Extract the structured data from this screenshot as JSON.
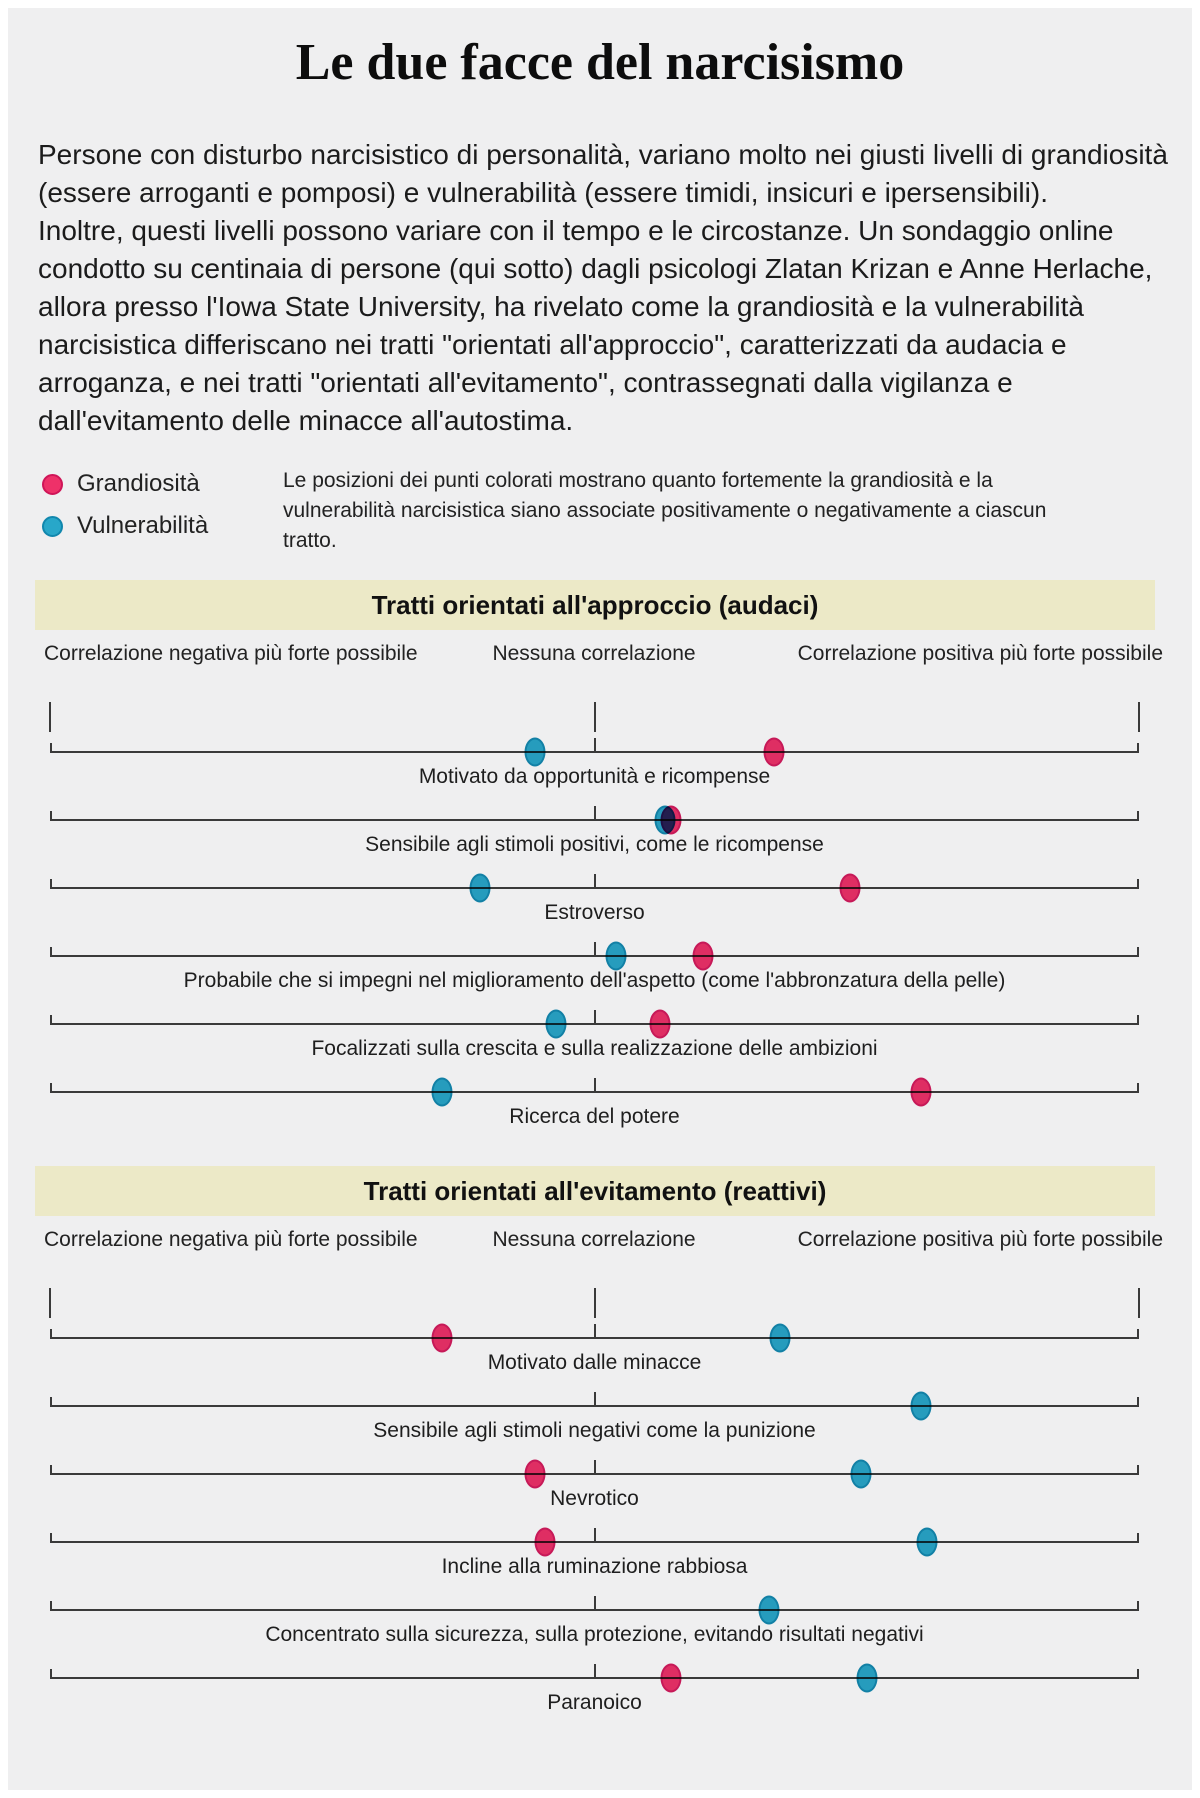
{
  "page": {
    "title": "Le due facce del narcisismo",
    "background": "#efeff0",
    "band_color": "#ece9c7"
  },
  "intro": {
    "p1": "Persone con disturbo narcisistico di personalità, variano molto nei giusti livelli di grandiosità (essere arroganti e pomposi) e vulnerabilità (essere timidi, insicuri e ipersensibili).",
    "p2": "Inoltre, questi livelli possono variare con il tempo e le circostanze. Un sondaggio online condotto su centinaia di persone (qui sotto) dagli psicologi Zlatan Krizan e Anne Herlache, allora presso l'Iowa State University, ha rivelato come la grandiosità e la vulnerabilità narcisistica differiscano nei tratti \"orientati all'approccio\", caratterizzati da audacia e arroganza, e nei tratti \"orientati all'evitamento\", contrassegnati dalla vigilanza e dall'evitamento delle minacce all'autostima."
  },
  "legend": {
    "note": "Le posizioni dei punti colorati mostrano quanto fortemente la grandiosità e la vulnerabilità narcisistica siano associate positivamente o negativamente a ciascun tratto."
  },
  "chart_data": {
    "type": "scatter",
    "x_axis": {
      "min": -1,
      "max": 1,
      "ticks": [
        -1,
        0,
        1
      ],
      "label_left": "Correlazione negativa più forte possibile",
      "label_center": "Nessuna correlazione",
      "label_right": "Correlazione positiva più forte possibile"
    },
    "legend": [
      {
        "name": "Grandiosità",
        "color": "#ee3169"
      },
      {
        "name": "Vulnerabilità",
        "color": "#28a7c9"
      }
    ],
    "sections": [
      {
        "title": "Tratti orientati all'approccio (audaci)",
        "rows": [
          {
            "label": "Motivato da opportunità e ricompense",
            "grandiosita": 0.33,
            "vulnerabilita": -0.11
          },
          {
            "label": "Sensibile agli stimoli positivi, come le ricompense",
            "grandiosita": 0.14,
            "vulnerabilita": 0.13
          },
          {
            "label": "Estroverso",
            "grandiosita": 0.47,
            "vulnerabilita": -0.21
          },
          {
            "label": "Probabile che si impegni nel miglioramento dell'aspetto (come l'abbronzatura della pelle)",
            "grandiosita": 0.2,
            "vulnerabilita": 0.04
          },
          {
            "label": "Focalizzati sulla crescita e sulla realizzazione delle ambizioni",
            "grandiosita": 0.12,
            "vulnerabilita": -0.07
          },
          {
            "label": "Ricerca del potere",
            "grandiosita": 0.6,
            "vulnerabilita": -0.28
          }
        ]
      },
      {
        "title": "Tratti orientati all'evitamento (reattivi)",
        "rows": [
          {
            "label": "Motivato dalle minacce",
            "grandiosita": -0.28,
            "vulnerabilita": 0.34
          },
          {
            "label": "Sensibile agli stimoli negativi come la punizione",
            "grandiosita": null,
            "vulnerabilita": 0.6
          },
          {
            "label": "Nevrotico",
            "grandiosita": -0.11,
            "vulnerabilita": 0.49
          },
          {
            "label": "Incline alla ruminazione rabbiosa",
            "grandiosita": -0.09,
            "vulnerabilita": 0.61
          },
          {
            "label": "Concentrato sulla sicurezza, sulla protezione, evitando risultati negativi",
            "grandiosita": null,
            "vulnerabilita": 0.32
          },
          {
            "label": "Paranoico",
            "grandiosita": 0.14,
            "vulnerabilita": 0.5
          }
        ]
      }
    ]
  }
}
